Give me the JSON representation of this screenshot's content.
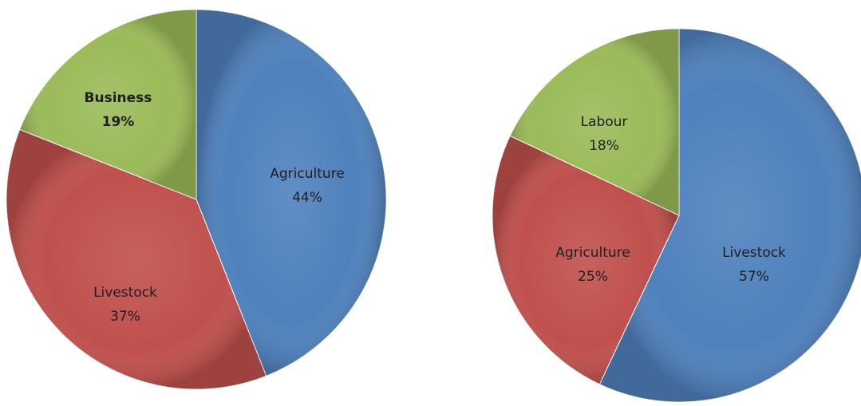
{
  "chart_data": [
    {
      "type": "pie",
      "slices": [
        {
          "label": "Agriculture",
          "value": 44,
          "value_text": "44%",
          "color": "#4f81bd"
        },
        {
          "label": "Livestock",
          "value": 37,
          "value_text": "37%",
          "color": "#c0504d"
        },
        {
          "label": "Business",
          "value": 19,
          "value_text": "19%",
          "color": "#9bbb59"
        }
      ]
    },
    {
      "type": "pie",
      "slices": [
        {
          "label": "Livestock",
          "value": 57,
          "value_text": "57%",
          "color": "#4f81bd"
        },
        {
          "label": "Agriculture",
          "value": 25,
          "value_text": "25%",
          "color": "#c0504d"
        },
        {
          "label": "Labour",
          "value": 18,
          "value_text": "18%",
          "color": "#9bbb59"
        }
      ]
    }
  ]
}
